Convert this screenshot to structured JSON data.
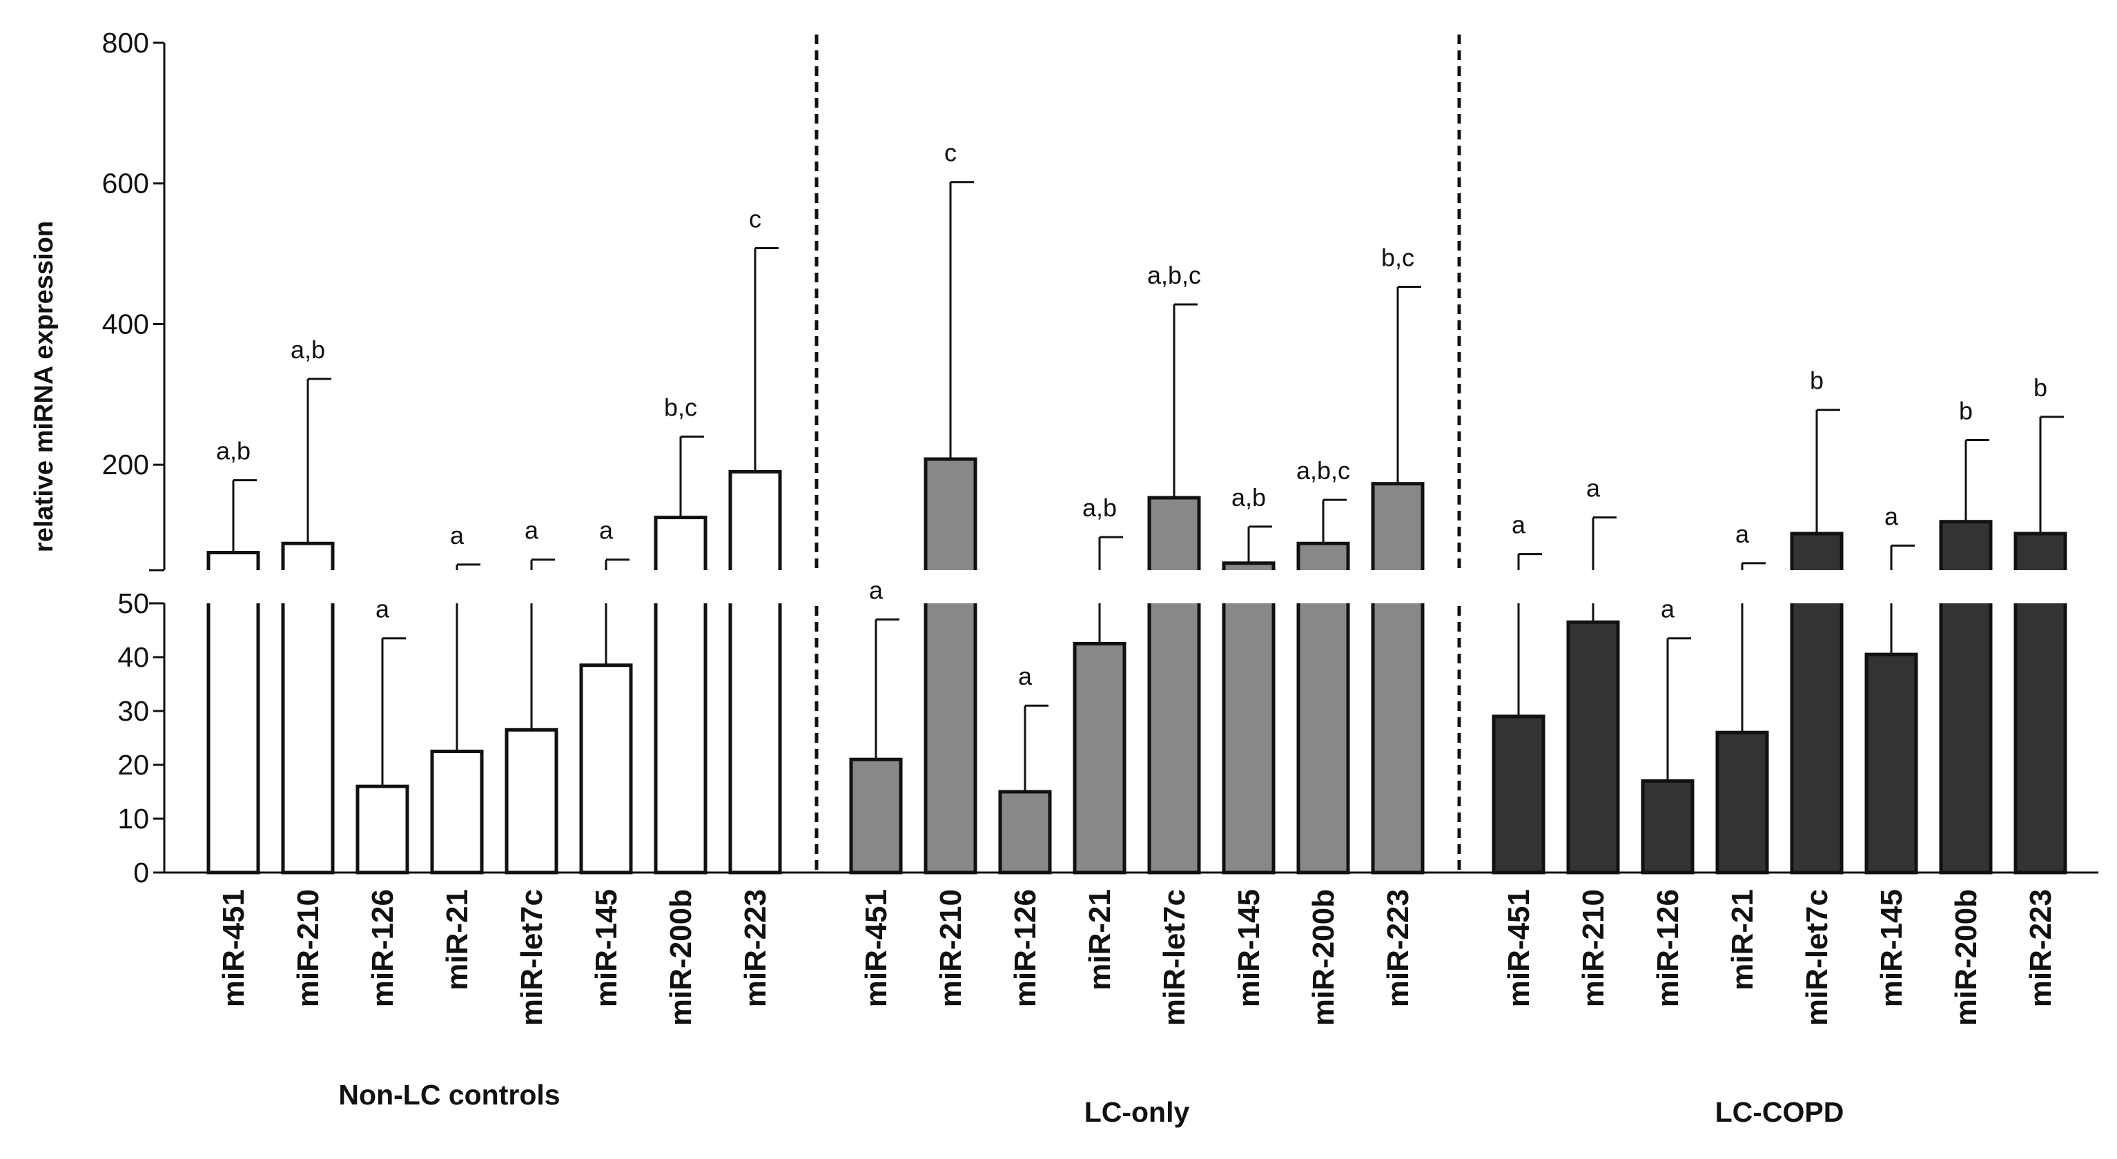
{
  "chart_data": {
    "type": "bar",
    "ylabel": "relative miRNA expression",
    "xlabel": "",
    "title": "",
    "axis_break": {
      "lower_range": [
        0,
        50
      ],
      "upper_range": [
        50,
        800
      ],
      "lower_ticks": [
        0,
        10,
        20,
        30,
        40,
        50
      ],
      "upper_ticks": [
        200,
        400,
        600,
        800
      ]
    },
    "categories": [
      "miR-451",
      "miR-210",
      "miR-126",
      "miR-21",
      "miR-let7c",
      "miR-145",
      "miR-200b",
      "miR-223"
    ],
    "groups": [
      {
        "name": "Non-LC controls",
        "fill": "#ffffff",
        "values": [
          75,
          88,
          16,
          22.5,
          26.5,
          38.5,
          125,
          190
        ],
        "errors": [
          178,
          322,
          43.5,
          58,
          65,
          65,
          240,
          508
        ],
        "sig": [
          "a,b",
          "a,b",
          "a",
          "a",
          "a",
          "a",
          "b,c",
          "c"
        ]
      },
      {
        "name": "LC-only",
        "fill": "#888888",
        "values": [
          21,
          208,
          15,
          42.5,
          153,
          60,
          88,
          173
        ],
        "errors": [
          47,
          602,
          31,
          97,
          428,
          112,
          150,
          453
        ],
        "sig": [
          "a",
          "c",
          "a",
          "a,b",
          "a,b,c",
          "a,b",
          "a,b,c",
          "b,c"
        ]
      },
      {
        "name": "LC-COPD",
        "fill": "#333333",
        "values": [
          29,
          46.5,
          17,
          26,
          102,
          40.5,
          119,
          102
        ],
        "errors": [
          73,
          125,
          43.5,
          60,
          278,
          85,
          235,
          268
        ],
        "sig": [
          "a",
          "a",
          "a",
          "a",
          "b",
          "a",
          "b",
          "b"
        ]
      }
    ]
  }
}
